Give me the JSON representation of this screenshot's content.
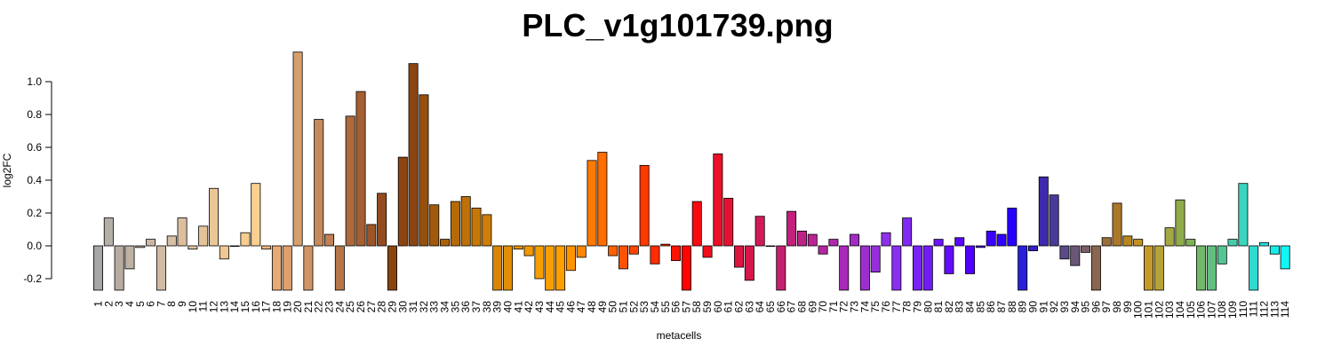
{
  "chart_data": {
    "type": "bar",
    "title": "PLC_v1g101739.png",
    "xlabel": "metacells",
    "ylabel": "log2FC",
    "ylim": [
      -0.27,
      1.18
    ],
    "yticks": [
      "-0.2",
      "0.0",
      "0.2",
      "0.4",
      "0.6",
      "0.8",
      "1.0"
    ],
    "categories": [
      "1",
      "2",
      "3",
      "4",
      "5",
      "6",
      "7",
      "8",
      "9",
      "10",
      "11",
      "12",
      "13",
      "14",
      "15",
      "16",
      "17",
      "18",
      "19",
      "20",
      "21",
      "22",
      "23",
      "24",
      "25",
      "26",
      "27",
      "28",
      "29",
      "30",
      "31",
      "32",
      "33",
      "34",
      "35",
      "36",
      "37",
      "38",
      "39",
      "40",
      "41",
      "42",
      "43",
      "44",
      "45",
      "46",
      "47",
      "48",
      "49",
      "50",
      "51",
      "52",
      "53",
      "54",
      "55",
      "56",
      "57",
      "58",
      "59",
      "60",
      "61",
      "62",
      "63",
      "64",
      "65",
      "66",
      "67",
      "68",
      "69",
      "70",
      "71",
      "72",
      "73",
      "74",
      "75",
      "76",
      "77",
      "78",
      "79",
      "80",
      "81",
      "82",
      "83",
      "84",
      "85",
      "86",
      "87",
      "88",
      "89",
      "90",
      "91",
      "92",
      "93",
      "94",
      "95",
      "96",
      "97",
      "98",
      "99",
      "100",
      "101",
      "102",
      "103",
      "104",
      "105",
      "106",
      "107",
      "108",
      "109",
      "110",
      "111",
      "112",
      "113",
      "114"
    ],
    "values": [
      -0.27,
      0.17,
      -0.27,
      -0.14,
      -0.01,
      0.04,
      -0.27,
      0.06,
      0.17,
      -0.02,
      0.12,
      0.35,
      -0.08,
      0.0,
      0.08,
      0.38,
      -0.02,
      -0.27,
      -0.27,
      1.18,
      -0.27,
      0.77,
      0.07,
      -0.27,
      0.79,
      0.94,
      0.13,
      0.32,
      -0.27,
      0.54,
      1.11,
      0.92,
      0.25,
      0.04,
      0.27,
      0.3,
      0.23,
      0.19,
      -0.27,
      -0.27,
      -0.02,
      -0.06,
      -0.2,
      -0.27,
      -0.27,
      -0.15,
      -0.07,
      0.52,
      0.57,
      -0.06,
      -0.14,
      -0.05,
      0.49,
      -0.11,
      0.01,
      -0.09,
      -0.27,
      0.27,
      -0.07,
      0.56,
      0.29,
      -0.13,
      -0.21,
      0.18,
      0.0,
      -0.27,
      0.21,
      0.09,
      0.07,
      -0.05,
      0.04,
      -0.27,
      0.07,
      -0.27,
      -0.16,
      0.08,
      -0.27,
      0.17,
      -0.27,
      -0.27,
      0.04,
      -0.17,
      0.05,
      -0.17,
      -0.01,
      0.09,
      0.07,
      0.23,
      -0.27,
      -0.03,
      0.42,
      0.31,
      -0.08,
      -0.12,
      -0.04,
      -0.27,
      0.05,
      0.26,
      0.06,
      0.04,
      -0.27,
      -0.27,
      0.11,
      0.28,
      0.04,
      -0.27,
      -0.27,
      -0.11,
      0.04,
      0.38,
      -0.27,
      0.02,
      -0.05,
      -0.14
    ],
    "colors": [
      "#a6a6a6",
      "#b3aea6",
      "#b8aca0",
      "#bfb1a3",
      "#c4b3a3",
      "#cab6a3",
      "#d1bba5",
      "#d8c0a5",
      "#dcbf9f",
      "#e1c29e",
      "#e5c399",
      "#ebc796",
      "#f0c893",
      "#f4cb91",
      "#f7cd8e",
      "#fad090",
      "#f2b880",
      "#e8aa77",
      "#dea06d",
      "#d6a06d",
      "#cf9464",
      "#c8895a",
      "#c08055",
      "#b77446",
      "#ae6a3c",
      "#a55f32",
      "#9c5528",
      "#934c20",
      "#8b4513",
      "#8b4513",
      "#8b4513",
      "#96500e",
      "#a15a0b",
      "#aa620a",
      "#b56a08",
      "#bd7107",
      "#c67806",
      "#cf7f05",
      "#d88604",
      "#e38d03",
      "#ea9302",
      "#f19901",
      "#f59e00",
      "#fb9f00",
      "#ff9f00",
      "#ff9300",
      "#ff8600",
      "#ff7a00",
      "#ff6d00",
      "#ff6000",
      "#ff5300",
      "#ff4600",
      "#ff3900",
      "#ff2c00",
      "#ff1f00",
      "#ff1200",
      "#ff0500",
      "#f90a10",
      "#f20f1c",
      "#eb1028",
      "#e31234",
      "#de1440",
      "#d8164c",
      "#d31a58",
      "#cd1c64",
      "#c81e70",
      "#c3207c",
      "#be2288",
      "#b92494",
      "#b326a0",
      "#ad28ac",
      "#a72ab8",
      "#a12cc4",
      "#9b2ed0",
      "#952fdc",
      "#8e30e8",
      "#882ff0",
      "#8129f2",
      "#7a22f4",
      "#721bf6",
      "#6a14f8",
      "#620df8",
      "#5a06fa",
      "#5000fc",
      "#4600fd",
      "#3c00fe",
      "#3200ff",
      "#2800ff",
      "#2a1fd8",
      "#3520c4",
      "#3d2aae",
      "#4a3a98",
      "#5a4a86",
      "#6a5676",
      "#7a5e66",
      "#8a6650",
      "#9a6e3c",
      "#aa7828",
      "#b8861a",
      "#c19221",
      "#c69a2a",
      "#b6a335",
      "#a3a840",
      "#90ac4a",
      "#80b055",
      "#70b86a",
      "#62bf7e",
      "#55c693",
      "#48cda8",
      "#3bd4bd",
      "#2fdbd0",
      "#24e3e2",
      "#18ece9",
      "#0ff7f7"
    ]
  }
}
